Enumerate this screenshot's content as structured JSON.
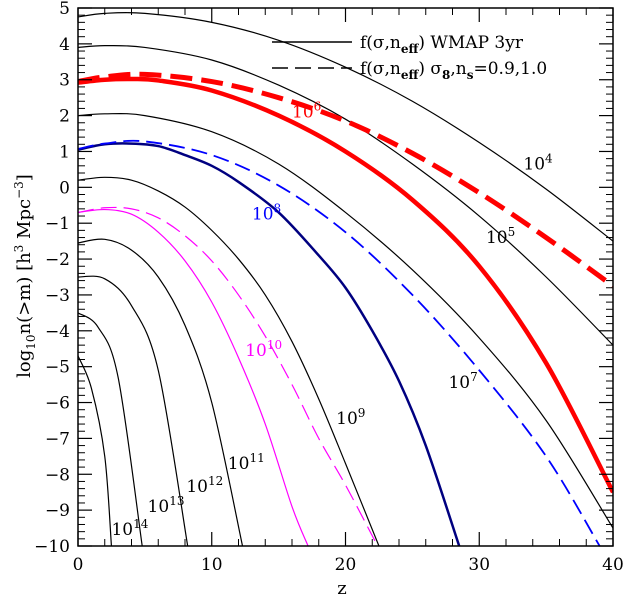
{
  "chart_data": {
    "type": "line",
    "title": "",
    "xlabel": "z",
    "ylabel": "log₁₀n(>m)  [h³ Mpc⁻³]",
    "xlim": [
      0,
      40
    ],
    "ylim": [
      -10,
      5
    ],
    "x_ticks": [
      0,
      10,
      20,
      30,
      40
    ],
    "y_ticks": [
      -10,
      -9,
      -8,
      -7,
      -6,
      -5,
      -4,
      -3,
      -2,
      -1,
      0,
      1,
      2,
      3,
      4,
      5
    ],
    "grid": false,
    "legend_position": "top-right",
    "legend": [
      {
        "label": "f(σ,n_eff)  WMAP 3yr",
        "style": "solid"
      },
      {
        "label": "f(σ,n_eff)  σ8,ns=0.9,1.0",
        "style": "dashed"
      }
    ],
    "colors": {
      "red": "#ff0000",
      "blue": "#0000ff",
      "navy": "#000080",
      "magenta": "#ff00ff",
      "black": "#000000"
    },
    "series": [
      {
        "mass": "10^4",
        "style": "solid",
        "color": "#000000",
        "x": [
          0,
          2,
          5,
          10,
          15,
          20,
          25,
          30,
          35,
          40
        ],
        "y": [
          4.75,
          4.85,
          4.85,
          4.6,
          4.1,
          3.35,
          2.4,
          1.25,
          -0.05,
          -1.5
        ]
      },
      {
        "mass": "10^5",
        "style": "solid",
        "color": "#000000",
        "x": [
          0,
          2,
          5,
          10,
          15,
          20,
          25,
          30,
          35,
          40
        ],
        "y": [
          3.9,
          3.95,
          3.9,
          3.55,
          2.85,
          1.9,
          0.65,
          -0.8,
          -2.5,
          -4.4
        ]
      },
      {
        "mass": "10^6",
        "style": "solid",
        "color": "#ff0000",
        "x": [
          0,
          2,
          4,
          6,
          10,
          15,
          20,
          25,
          30,
          35,
          40
        ],
        "y": [
          2.92,
          3.0,
          3.02,
          2.98,
          2.7,
          2.0,
          1.0,
          -0.35,
          -2.2,
          -4.9,
          -8.5
        ]
      },
      {
        "mass": "10^6",
        "style": "dashed",
        "color": "#ff0000",
        "x": [
          0,
          2,
          5,
          10,
          15,
          20,
          25,
          30,
          35,
          40
        ],
        "y": [
          2.95,
          3.08,
          3.15,
          2.95,
          2.5,
          1.85,
          0.95,
          -0.15,
          -1.4,
          -2.75
        ]
      },
      {
        "mass": "10^7",
        "style": "solid",
        "color": "#000000",
        "x": [
          0,
          2,
          5,
          10,
          15,
          20,
          25,
          30,
          35,
          40
        ],
        "y": [
          2.0,
          2.05,
          2.0,
          1.55,
          0.65,
          -0.7,
          -2.3,
          -4.2,
          -6.5,
          -9.5
        ]
      },
      {
        "mass": "10^8",
        "style": "solid",
        "color": "#000080",
        "x": [
          0,
          2,
          4,
          6,
          8,
          10,
          12,
          15,
          18,
          20,
          22,
          24,
          26,
          28.5
        ],
        "y": [
          1.05,
          1.2,
          1.22,
          1.15,
          0.9,
          0.6,
          0.15,
          -0.7,
          -1.9,
          -2.8,
          -4.0,
          -5.4,
          -7.2,
          -10
        ]
      },
      {
        "mass": "10^8",
        "style": "dashed",
        "color": "#0000ff",
        "x": [
          0,
          2,
          5,
          10,
          15,
          20,
          25,
          30,
          35,
          39
        ],
        "y": [
          1.07,
          1.22,
          1.28,
          0.9,
          0.05,
          -1.25,
          -3.0,
          -5.1,
          -7.5,
          -10
        ]
      },
      {
        "mass": "10^9",
        "style": "solid",
        "color": "#000000",
        "x": [
          0,
          2,
          4,
          6,
          8,
          10,
          12,
          14,
          16,
          18,
          20,
          22.5
        ],
        "y": [
          0.2,
          0.28,
          0.2,
          -0.1,
          -0.55,
          -1.2,
          -2.0,
          -3.0,
          -4.3,
          -5.9,
          -7.7,
          -10
        ]
      },
      {
        "mass": "10^10",
        "style": "solid",
        "color": "#ff00ff",
        "x": [
          0,
          2,
          4,
          6,
          8,
          10,
          12,
          14,
          16,
          17.2
        ],
        "y": [
          -0.7,
          -0.62,
          -0.75,
          -1.25,
          -2.05,
          -3.2,
          -4.75,
          -6.6,
          -8.9,
          -10
        ]
      },
      {
        "mass": "10^10",
        "style": "dashed",
        "color": "#ff00ff",
        "x": [
          0,
          2,
          4,
          6,
          8,
          10,
          12,
          14,
          16,
          18,
          20,
          22.4
        ],
        "y": [
          -0.7,
          -0.57,
          -0.6,
          -0.85,
          -1.35,
          -2.05,
          -3.0,
          -4.15,
          -5.5,
          -7.0,
          -8.3,
          -10
        ]
      },
      {
        "mass": "10^11",
        "style": "solid",
        "color": "#000000",
        "x": [
          0,
          2,
          4,
          6,
          8,
          10,
          12.3
        ],
        "y": [
          -1.55,
          -1.45,
          -1.75,
          -2.5,
          -3.85,
          -6.0,
          -10
        ]
      },
      {
        "mass": "10^12",
        "style": "solid",
        "color": "#000000",
        "x": [
          0,
          2,
          4,
          6,
          8.2
        ],
        "y": [
          -2.5,
          -2.55,
          -3.3,
          -5.1,
          -10
        ]
      },
      {
        "mass": "10^13",
        "style": "solid",
        "color": "#000000",
        "x": [
          0,
          1.5,
          3,
          4.8
        ],
        "y": [
          -3.5,
          -3.9,
          -5.3,
          -10
        ]
      },
      {
        "mass": "10^14",
        "style": "solid",
        "color": "#000000",
        "x": [
          0,
          1,
          2,
          2.5
        ],
        "y": [
          -4.7,
          -5.6,
          -7.5,
          -10
        ]
      }
    ],
    "annotations": [
      {
        "base": "10",
        "exp": "4",
        "x": 33.3,
        "y": 0.5,
        "color": "#000000"
      },
      {
        "base": "10",
        "exp": "5",
        "x": 30.5,
        "y": -1.55,
        "color": "#000000"
      },
      {
        "base": "10",
        "exp": "6",
        "x": 16.0,
        "y": 1.95,
        "color": "#ff0000"
      },
      {
        "base": "10",
        "exp": "7",
        "x": 27.7,
        "y": -5.6,
        "color": "#000000"
      },
      {
        "base": "10",
        "exp": "8",
        "x": 13.0,
        "y": -0.9,
        "color": "#0000ff"
      },
      {
        "base": "10",
        "exp": "9",
        "x": 19.3,
        "y": -6.6,
        "color": "#000000"
      },
      {
        "base": "10",
        "exp": "10",
        "x": 12.5,
        "y": -4.7,
        "color": "#ff00ff"
      },
      {
        "base": "10",
        "exp": "11",
        "x": 11.2,
        "y": -7.85,
        "color": "#000000"
      },
      {
        "base": "10",
        "exp": "12",
        "x": 8.1,
        "y": -8.5,
        "color": "#000000"
      },
      {
        "base": "10",
        "exp": "13",
        "x": 5.2,
        "y": -9.05,
        "color": "#000000"
      },
      {
        "base": "10",
        "exp": "14",
        "x": 2.5,
        "y": -9.7,
        "color": "#000000"
      }
    ]
  }
}
